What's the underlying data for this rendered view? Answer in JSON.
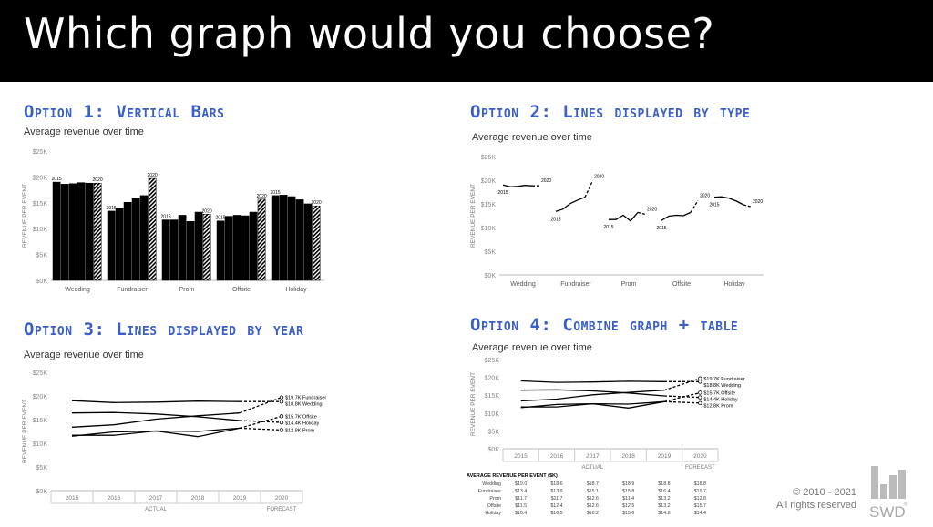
{
  "header": {
    "title": "Which graph would you choose?"
  },
  "footer": {
    "copyright_line1": "© 2010 - 2021",
    "copyright_line2": "All rights reserved",
    "logo_text": "SWD",
    "logo_mark": "®"
  },
  "years": [
    "2015",
    "2016",
    "2017",
    "2018",
    "2019",
    "2020"
  ],
  "categories": [
    "Wedding",
    "Fundraiser",
    "Prom",
    "Offsite",
    "Holiday"
  ],
  "chart_data": [
    {
      "type": "bar",
      "option_title": "Option 1: Vertical Bars",
      "subtitle": "Average revenue over time",
      "ylabel": "REVENUE PER EVENT",
      "ylim": [
        0,
        25
      ],
      "yticks": [
        "$0K",
        "$5K",
        "$10K",
        "$15K",
        "$20K",
        "$25K"
      ],
      "categories": [
        "Wedding",
        "Fundraiser",
        "Prom",
        "Offsite",
        "Holiday"
      ],
      "year_labels": [
        "2015",
        "2020"
      ],
      "values": [
        [
          19.0,
          18.6,
          18.7,
          18.9,
          18.8,
          18.8
        ],
        [
          13.4,
          13.9,
          15.1,
          15.8,
          16.4,
          19.7
        ],
        [
          11.7,
          11.7,
          12.6,
          11.4,
          13.2,
          12.8
        ],
        [
          11.5,
          12.4,
          12.6,
          12.5,
          13.2,
          15.7
        ],
        [
          16.4,
          16.5,
          16.2,
          15.6,
          14.8,
          14.4
        ]
      ]
    },
    {
      "type": "line",
      "option_title": "Option 2: Lines displayed by type",
      "subtitle": "Average revenue over time",
      "ylabel": "REVENUE PER EVENT",
      "ylim": [
        0,
        25
      ],
      "yticks": [
        "$0K",
        "$5K",
        "$10K",
        "$15K",
        "$20K",
        "$25K"
      ],
      "categories": [
        "Wedding",
        "Fundraiser",
        "Prom",
        "Offsite",
        "Holiday"
      ],
      "year_labels": [
        "2015",
        "2020"
      ]
    },
    {
      "type": "line",
      "option_title": "Option 3: Lines displayed by year",
      "subtitle": "Average revenue over time",
      "ylabel": "REVENUE PER EVENT",
      "ylim": [
        0,
        25
      ],
      "yticks": [
        "$0K",
        "$5K",
        "$10K",
        "$15K",
        "$20K",
        "$25K"
      ],
      "x": [
        "2015",
        "2016",
        "2017",
        "2018",
        "2019",
        "2020"
      ],
      "actual_label": "ACTUAL",
      "forecast_label": "FORECAST",
      "series": [
        {
          "name": "Fundraiser",
          "end_label": "$19.7K Fundraiser"
        },
        {
          "name": "Wedding",
          "end_label": "$18.8K Wedding"
        },
        {
          "name": "Offsite",
          "end_label": "$15.7K Offsite"
        },
        {
          "name": "Holiday",
          "end_label": "$14.4K Holiday"
        },
        {
          "name": "Prom",
          "end_label": "$12.8K Prom"
        }
      ]
    },
    {
      "type": "line",
      "option_title": "Option 4: Combine graph + table",
      "subtitle": "Average revenue over time",
      "ylabel": "REVENUE PER EVENT",
      "ylim": [
        0,
        25
      ],
      "yticks": [
        "$0K",
        "$5K",
        "$10K",
        "$15K",
        "$20K",
        "$25K"
      ],
      "x": [
        "2015",
        "2016",
        "2017",
        "2018",
        "2019",
        "2020"
      ],
      "actual_label": "ACTUAL",
      "forecast_label": "FORECAST",
      "table_title": "AVERAGE REVENUE PER EVENT ($K)",
      "table": [
        {
          "name": "Wedding",
          "values": [
            "$19.0",
            "$18.6",
            "$18.7",
            "$18.9",
            "$18.8",
            "$18.8"
          ]
        },
        {
          "name": "Fundraiser",
          "values": [
            "$13.4",
            "$13.9",
            "$15.1",
            "$15.8",
            "$16.4",
            "$19.7"
          ]
        },
        {
          "name": "Prom",
          "values": [
            "$11.7",
            "$11.7",
            "$12.6",
            "$11.4",
            "$13.2",
            "$12.8"
          ]
        },
        {
          "name": "Offsite",
          "values": [
            "$11.5",
            "$12.4",
            "$12.6",
            "$12.5",
            "$13.2",
            "$15.7"
          ]
        },
        {
          "name": "Holiday",
          "values": [
            "$16.4",
            "$16.5",
            "$16.2",
            "$15.6",
            "$14.8",
            "$14.4"
          ]
        }
      ]
    }
  ]
}
